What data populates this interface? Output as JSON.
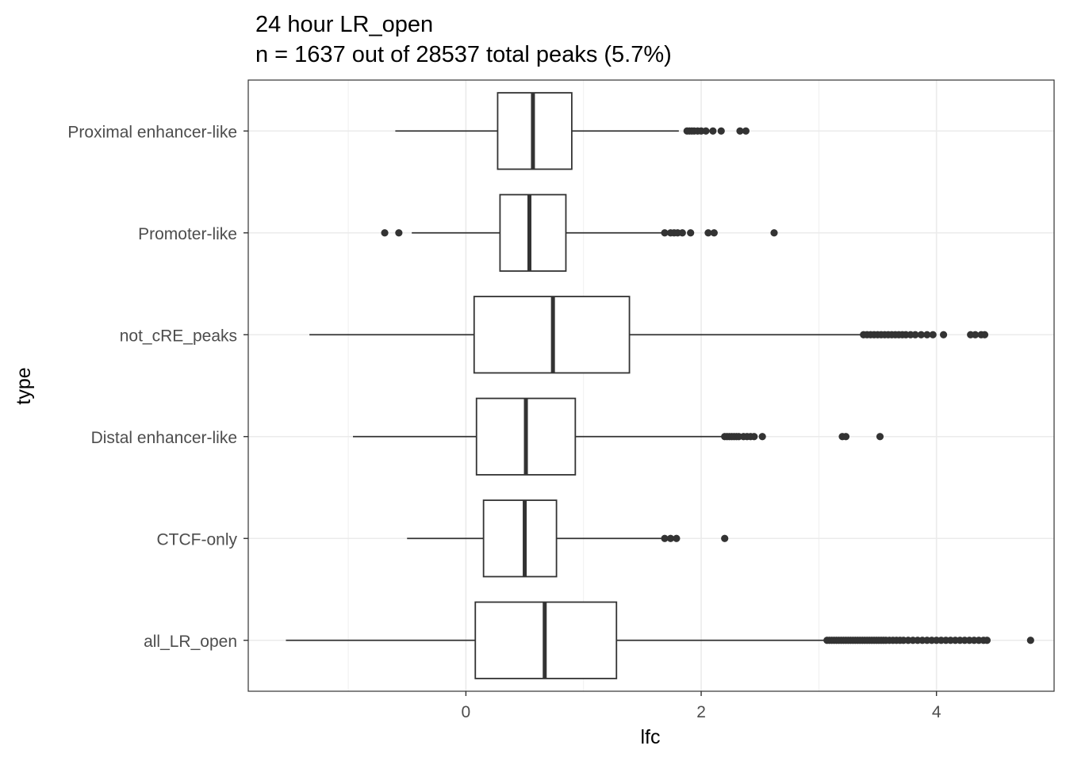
{
  "chart_data": {
    "type": "boxplot",
    "orientation": "horizontal",
    "title": "24 hour LR_open",
    "subtitle": "n = 1637 out of 28537 total peaks (5.7%)",
    "xlabel": "lfc",
    "ylabel": "type",
    "xlim": [
      -1.85,
      5.0
    ],
    "x_ticks": [
      0,
      2,
      4
    ],
    "grid": true,
    "colors": {
      "box_stroke": "#333333",
      "grid": "#ebebeb",
      "outlier": "#333333",
      "panel_border": "#333333"
    },
    "categories": [
      "Proximal enhancer-like",
      "Promoter-like",
      "not_cRE_peaks",
      "Distal enhancer-like",
      "CTCF-only",
      "all_LR_open"
    ],
    "boxes": [
      {
        "category": "Proximal enhancer-like",
        "whisker_low": -0.6,
        "q1": 0.27,
        "median": 0.57,
        "q3": 0.9,
        "whisker_high": 1.81,
        "outliers": [
          1.88,
          1.9,
          1.92,
          1.94,
          1.97,
          2.0,
          2.04,
          2.1,
          2.17,
          2.33,
          2.38
        ]
      },
      {
        "category": "Promoter-like",
        "whisker_low": -0.46,
        "q1": 0.29,
        "median": 0.54,
        "q3": 0.85,
        "whisker_high": 1.69,
        "outliers": [
          -0.69,
          -0.57,
          1.69,
          1.74,
          1.77,
          1.8,
          1.84,
          1.91,
          2.06,
          2.11,
          2.62
        ]
      },
      {
        "category": "not_cRE_peaks",
        "whisker_low": -1.33,
        "q1": 0.07,
        "median": 0.74,
        "q3": 1.39,
        "whisker_high": 3.38,
        "outliers": [
          3.38,
          3.41,
          3.44,
          3.47,
          3.5,
          3.53,
          3.56,
          3.59,
          3.62,
          3.65,
          3.68,
          3.71,
          3.74,
          3.78,
          3.82,
          3.87,
          3.92,
          3.97,
          4.06,
          4.29,
          4.33,
          4.38,
          4.41
        ]
      },
      {
        "category": "Distal enhancer-like",
        "whisker_low": -0.96,
        "q1": 0.09,
        "median": 0.51,
        "q3": 0.93,
        "whisker_high": 2.2,
        "outliers": [
          2.2,
          2.22,
          2.24,
          2.26,
          2.28,
          2.3,
          2.32,
          2.36,
          2.39,
          2.42,
          2.45,
          2.52,
          3.2,
          3.23,
          3.52
        ]
      },
      {
        "category": "CTCF-only",
        "whisker_low": -0.5,
        "q1": 0.15,
        "median": 0.5,
        "q3": 0.77,
        "whisker_high": 1.66,
        "outliers": [
          1.69,
          1.74,
          1.79,
          2.2
        ]
      },
      {
        "category": "all_LR_open",
        "whisker_low": -1.53,
        "q1": 0.08,
        "median": 0.67,
        "q3": 1.28,
        "whisker_high": 3.07,
        "outliers": [
          3.07,
          3.09,
          3.11,
          3.13,
          3.15,
          3.17,
          3.19,
          3.21,
          3.23,
          3.25,
          3.27,
          3.29,
          3.31,
          3.33,
          3.35,
          3.37,
          3.39,
          3.41,
          3.43,
          3.45,
          3.47,
          3.49,
          3.51,
          3.53,
          3.55,
          3.57,
          3.6,
          3.63,
          3.66,
          3.69,
          3.72,
          3.76,
          3.8,
          3.84,
          3.88,
          3.92,
          3.96,
          4.0,
          4.04,
          4.08,
          4.12,
          4.16,
          4.2,
          4.24,
          4.28,
          4.32,
          4.36,
          4.4,
          4.43,
          4.8
        ]
      }
    ]
  }
}
